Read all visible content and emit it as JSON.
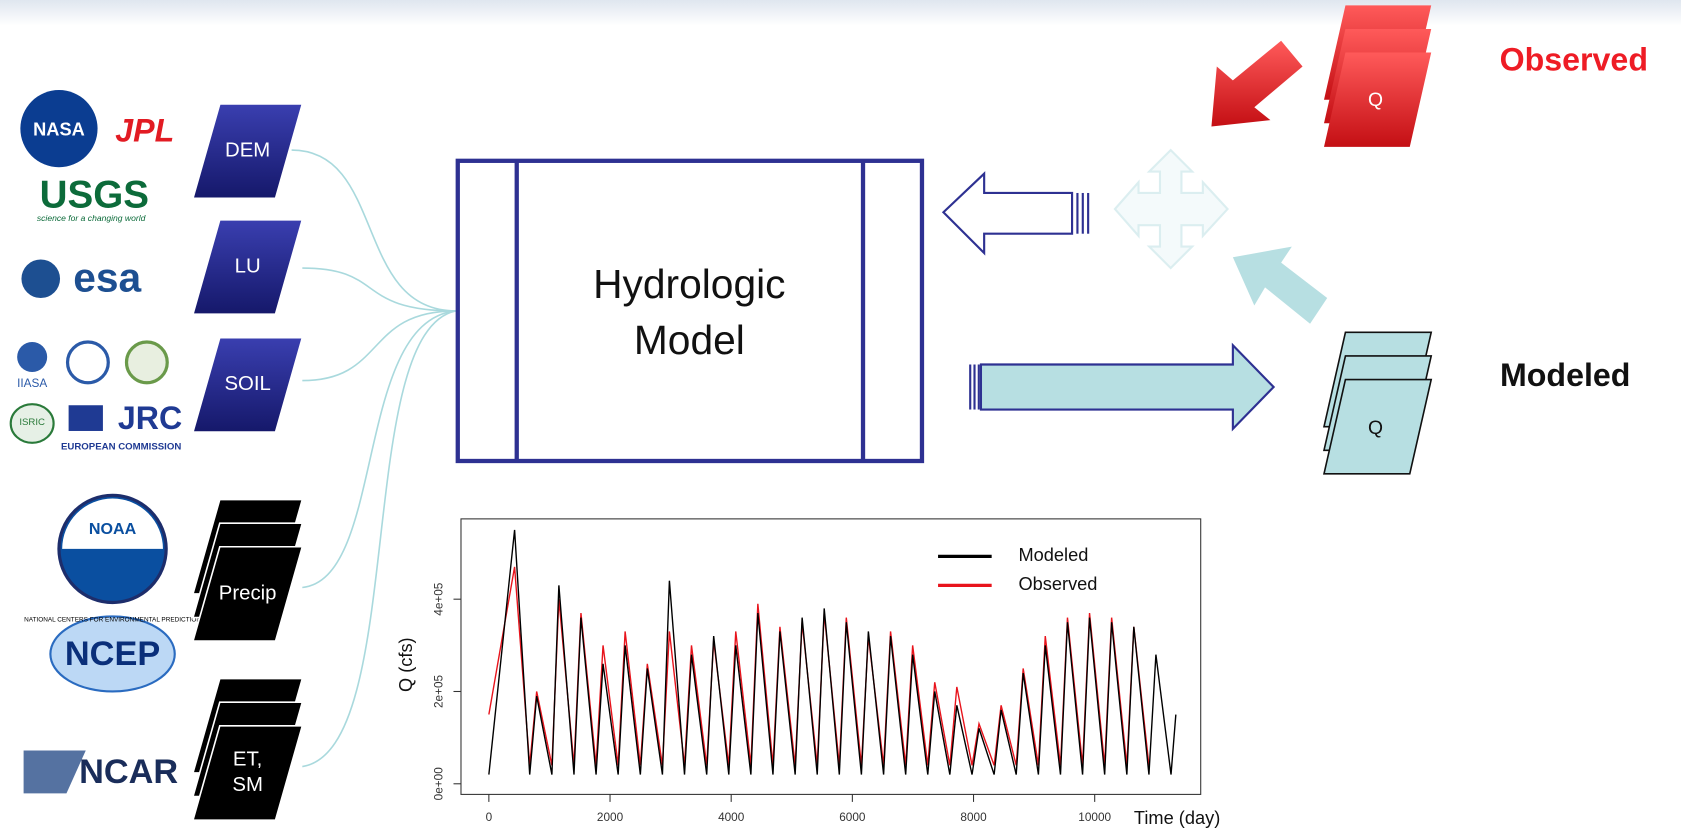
{
  "sources": {
    "nasa": "NASA",
    "jpl": "JPL",
    "usgs": "USGS",
    "usgs_tag": "science for a changing world",
    "esa": "esa",
    "iiasa": "IIASA",
    "isric": "ISRIC",
    "jrc": "JRC",
    "ec": "EUROPEAN COMMISSION",
    "noaa": "NOAA",
    "ncep": "NCEP",
    "ncep_ring": "NATIONAL CENTERS FOR ENVIRONMENTAL PREDICTION",
    "ncar": "NCAR"
  },
  "inputs": [
    {
      "lines": [
        "DEM"
      ]
    },
    {
      "lines": [
        "LU"
      ]
    },
    {
      "lines": [
        "SOIL"
      ]
    },
    {
      "lines": [
        "Precip"
      ]
    },
    {
      "lines": [
        "ET,",
        "SM"
      ]
    }
  ],
  "model": {
    "lines": [
      "Hydrologic",
      "Model"
    ]
  },
  "outputs": {
    "observed": {
      "label": "Observed",
      "q": "Q"
    },
    "modeled": {
      "label": "Modeled",
      "q": "Q"
    }
  },
  "chart_data": {
    "type": "line",
    "x_label": "Time (day)",
    "y_label": "Q (cfs)",
    "x": [
      0,
      425,
      675,
      790,
      1040,
      1155,
      1405,
      1520,
      1770,
      1885,
      2135,
      2250,
      2500,
      2615,
      2865,
      2980,
      3230,
      3345,
      3595,
      3710,
      3960,
      4075,
      4325,
      4440,
      4690,
      4805,
      5055,
      5170,
      5420,
      5535,
      5785,
      5900,
      6150,
      6265,
      6515,
      6630,
      6880,
      6995,
      7245,
      7360,
      7610,
      7725,
      7975,
      8090,
      8340,
      8455,
      8705,
      8820,
      9070,
      9185,
      9435,
      9550,
      9800,
      9915,
      10165,
      10280,
      10530,
      10645,
      10895,
      11010,
      11260,
      11340
    ],
    "series": [
      {
        "name": "Modeled",
        "color": "#000000",
        "values": [
          20000,
          550000,
          20000,
          190000,
          20000,
          430000,
          20000,
          360000,
          20000,
          260000,
          20000,
          300000,
          20000,
          250000,
          20000,
          440000,
          20000,
          280000,
          20000,
          320000,
          20000,
          300000,
          20000,
          370000,
          20000,
          330000,
          20000,
          360000,
          20000,
          380000,
          20000,
          350000,
          20000,
          330000,
          20000,
          320000,
          20000,
          280000,
          20000,
          200000,
          20000,
          170000,
          20000,
          120000,
          20000,
          160000,
          20000,
          240000,
          20000,
          300000,
          20000,
          350000,
          20000,
          360000,
          20000,
          350000,
          20000,
          340000,
          20000,
          280000,
          20000,
          150000
        ]
      },
      {
        "name": "Observed",
        "color": "#e8141c",
        "values": [
          150000,
          470000,
          40000,
          200000,
          40000,
          400000,
          40000,
          370000,
          40000,
          300000,
          40000,
          330000,
          40000,
          260000,
          40000,
          330000,
          40000,
          300000,
          40000,
          310000,
          40000,
          330000,
          40000,
          390000,
          40000,
          340000,
          40000,
          350000,
          40000,
          370000,
          40000,
          360000,
          40000,
          320000,
          40000,
          330000,
          40000,
          300000,
          40000,
          220000,
          40000,
          210000,
          40000,
          130000,
          40000,
          170000,
          40000,
          250000,
          40000,
          320000,
          40000,
          360000,
          40000,
          370000,
          40000,
          360000,
          40000,
          340000,
          40000,
          null,
          null,
          null
        ]
      }
    ],
    "xlim": [
      -460,
      11750
    ],
    "ylim": [
      -23000,
      574000
    ],
    "xticks": [
      0,
      2000,
      4000,
      6000,
      8000,
      10000
    ],
    "yticks": [
      {
        "value": 0,
        "label": "0e+00"
      },
      {
        "value": 200000,
        "label": "2e+05"
      },
      {
        "value": 400000,
        "label": "4e+05"
      }
    ]
  }
}
